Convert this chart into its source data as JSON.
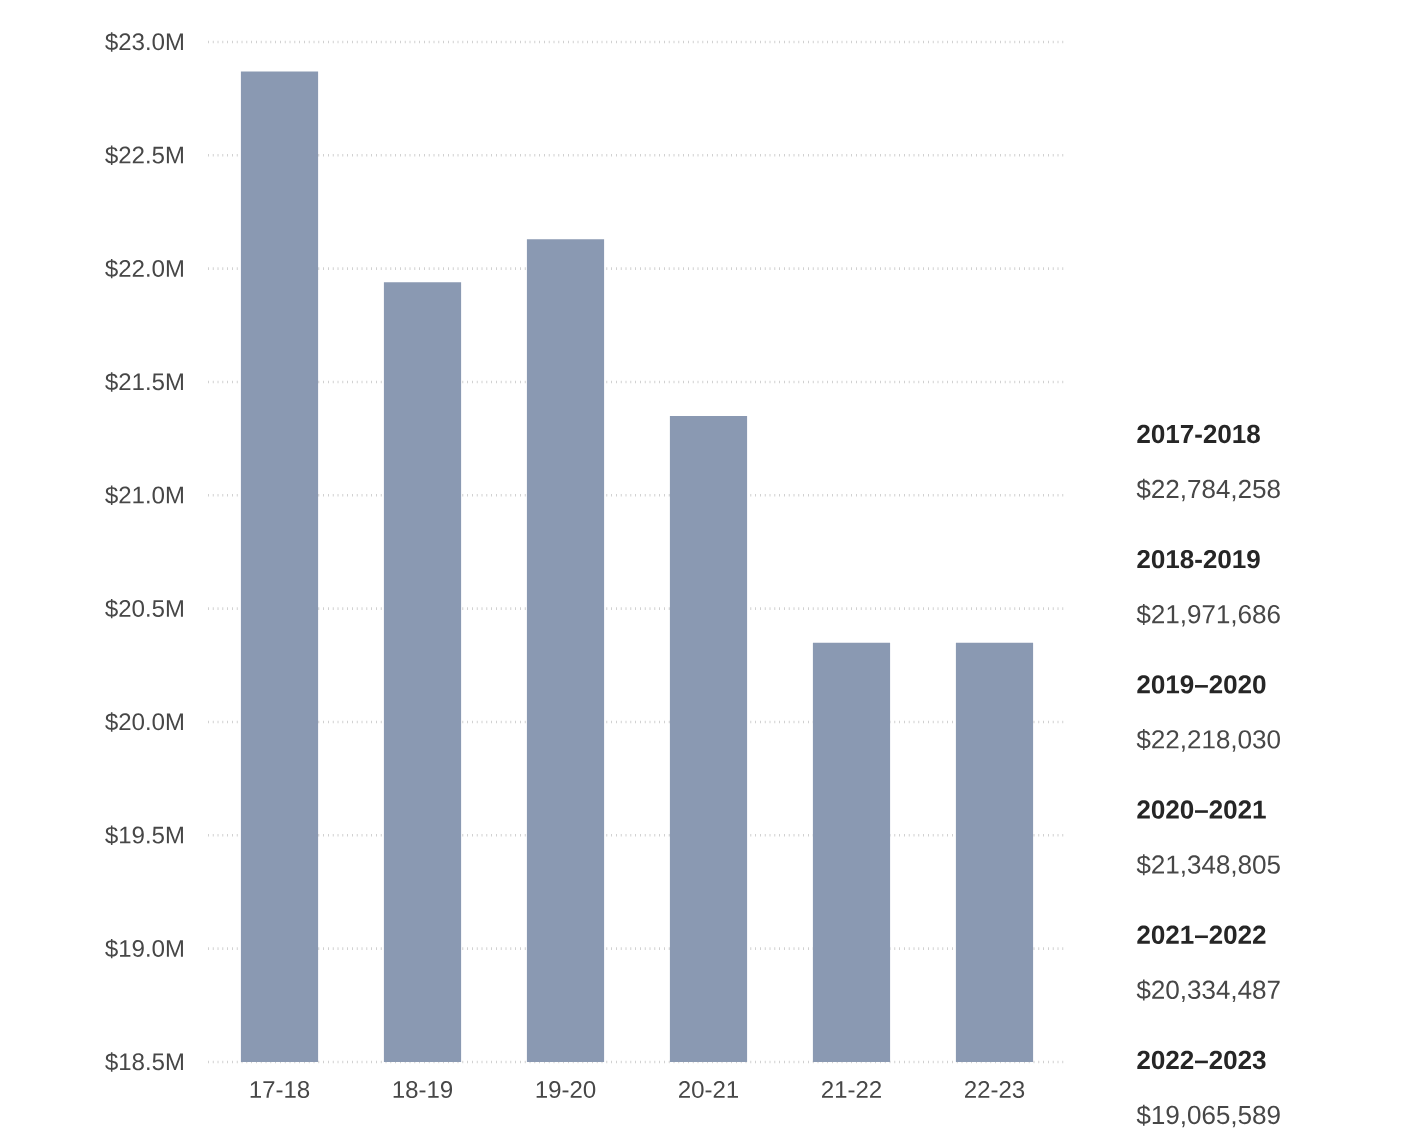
{
  "chart_data": {
    "type": "bar",
    "categories": [
      "17-18",
      "18-19",
      "19-20",
      "20-21",
      "21-22",
      "22-23"
    ],
    "values": [
      22.87,
      21.94,
      22.13,
      21.35,
      20.35,
      20.35
    ],
    "color": "#8a99b2",
    "ylim": [
      18.5,
      23.0
    ],
    "yticks": [
      {
        "value": 18.5,
        "label": "$18.5M"
      },
      {
        "value": 19.0,
        "label": "$19.0M"
      },
      {
        "value": 19.5,
        "label": "$19.5M"
      },
      {
        "value": 20.0,
        "label": "$20.0M"
      },
      {
        "value": 20.5,
        "label": "$20.5M"
      },
      {
        "value": 21.0,
        "label": "$21.0M"
      },
      {
        "value": 21.5,
        "label": "$21.5M"
      },
      {
        "value": 22.0,
        "label": "$22.0M"
      },
      {
        "value": 22.5,
        "label": "$22.5M"
      },
      {
        "value": 23.0,
        "label": "$23.0M"
      }
    ],
    "grid": "y",
    "annotations": [
      "2017-2018",
      "$22,784,258",
      "2018-2019",
      "$21,971,686",
      "2019–2020",
      "$22,218,030",
      "2020–2021",
      "$21,348,805",
      "2021–2022",
      "$20,334,487",
      "2022–2023",
      "$19,065,589"
    ]
  }
}
